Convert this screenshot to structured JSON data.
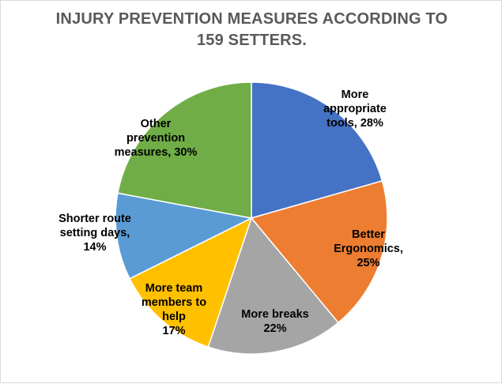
{
  "chart_data": {
    "type": "pie",
    "title_lines": [
      "INJURY PREVENTION MEASURES ACCORDING TO",
      "159 SETTERS."
    ],
    "start_angle_deg": 0,
    "direction": "clockwise",
    "slices": [
      {
        "name": "More appropriate tools",
        "value": 28,
        "color": "#4472c4",
        "label_lines": [
          "More",
          "appropriate",
          "tools, 28%"
        ]
      },
      {
        "name": "Better Ergonomics",
        "value": 25,
        "color": "#ed7d31",
        "label_lines": [
          "Better",
          "Ergonomics,",
          "25%"
        ]
      },
      {
        "name": "More breaks",
        "value": 22,
        "color": "#a5a5a5",
        "label_lines": [
          "More breaks",
          "22%"
        ]
      },
      {
        "name": "More team members to help",
        "value": 17,
        "color": "#ffc000",
        "label_lines": [
          "More team",
          "members to",
          "help",
          "17%"
        ]
      },
      {
        "name": "Shorter route setting days",
        "value": 14,
        "color": "#5b9bd5",
        "label_lines": [
          "Shorter route",
          "setting days,",
          "14%"
        ]
      },
      {
        "name": "Other prevention measures",
        "value": 30,
        "color": "#70ad47",
        "label_lines": [
          "Other",
          "prevention",
          "measures, 30%"
        ]
      }
    ]
  }
}
